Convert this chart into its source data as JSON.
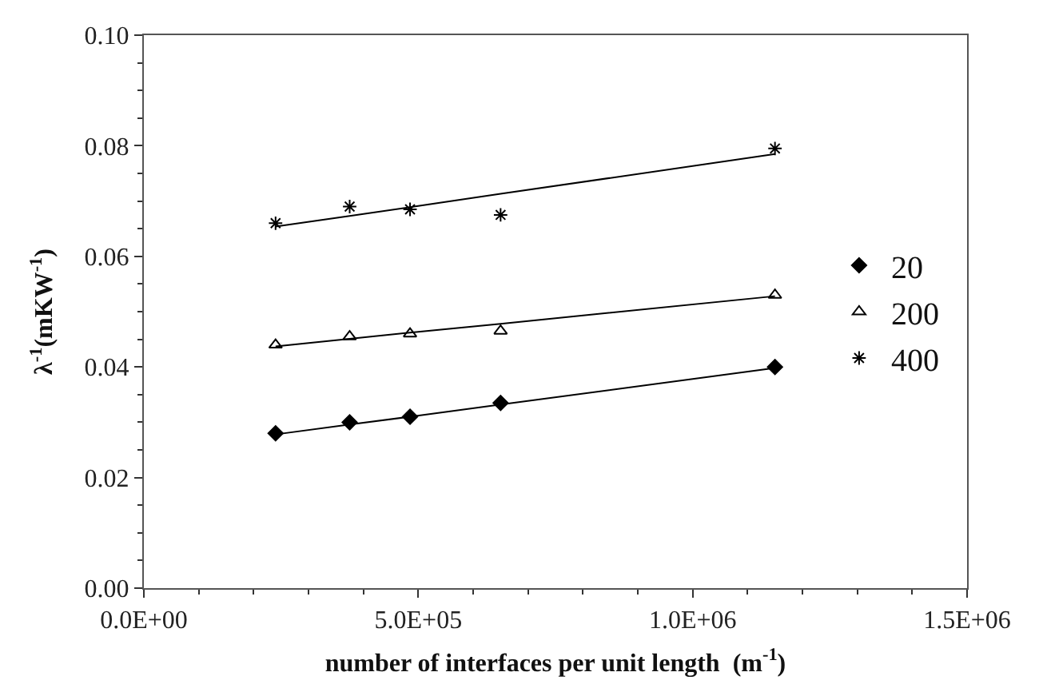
{
  "chart_data": {
    "type": "scatter",
    "xlabel": "number of interfaces per unit length  (m$^{-1}$)",
    "ylabel": "λ$^{-1}$(mKW$^{-1}$)",
    "xlim": [
      0,
      1500000
    ],
    "xticks": [
      {
        "value": 0,
        "label": "0.0E+00"
      },
      {
        "value": 500000,
        "label": "5.0E+05"
      },
      {
        "value": 1000000,
        "label": "1.0E+06"
      },
      {
        "value": 1500000,
        "label": "1.5E+06"
      }
    ],
    "ylim": [
      0,
      0.1
    ],
    "yticks": [
      {
        "value": 0,
        "label": "0.00"
      },
      {
        "value": 0.02,
        "label": "0.02"
      },
      {
        "value": 0.04,
        "label": "0.04"
      },
      {
        "value": 0.06,
        "label": "0.06"
      },
      {
        "value": 0.08,
        "label": "0.08"
      },
      {
        "value": 0.1,
        "label": "0.10"
      }
    ],
    "legend": "right",
    "x": [
      240000,
      375000,
      485000,
      650000,
      1150000
    ],
    "series": [
      {
        "name": "20",
        "color": "#000000",
        "marker": "diamond",
        "values": [
          0.028,
          0.03,
          0.031,
          0.0335,
          0.04
        ]
      },
      {
        "name": "200",
        "color": "#000000",
        "marker": "triangle",
        "values": [
          0.044,
          0.0455,
          0.046,
          0.0465,
          0.053
        ]
      },
      {
        "name": "400",
        "color": "#000000",
        "marker": "cross",
        "values": [
          0.066,
          0.069,
          0.0685,
          0.0675,
          0.0795
        ]
      },
      {
        "type": "line",
        "color": "#000000",
        "marker": "none",
        "line_style": "solid",
        "values": [
          0.0278,
          0.0296,
          0.031,
          0.0332,
          0.0398
        ]
      },
      {
        "type": "line",
        "color": "#000000",
        "marker": "none",
        "line_style": "solid",
        "values": [
          0.0437,
          0.0451,
          0.0462,
          0.0478,
          0.0528
        ]
      },
      {
        "type": "line",
        "color": "#000000",
        "marker": "none",
        "line_style": "solid",
        "values": [
          0.0654,
          0.0673,
          0.0689,
          0.0713,
          0.0785
        ]
      }
    ]
  }
}
